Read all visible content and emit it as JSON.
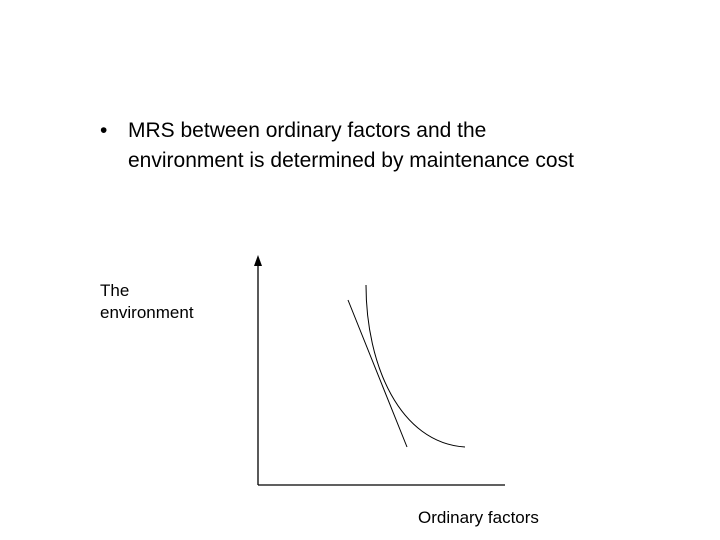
{
  "bullet": {
    "text": "MRS between ordinary factors and the environment is determined by maintenance cost"
  },
  "diagram": {
    "y_axis_label": "The environment",
    "x_axis_label": "Ordinary factors"
  }
}
